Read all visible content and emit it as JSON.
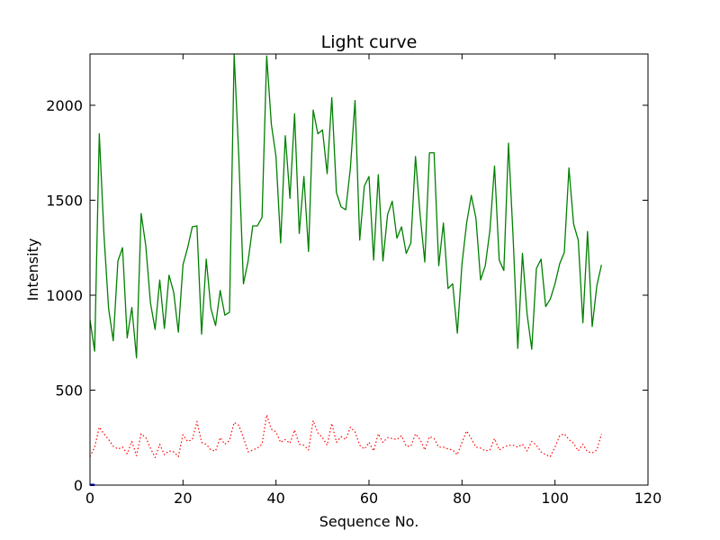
{
  "chart_data": {
    "type": "line",
    "title": "Light curve",
    "xlabel": "Sequence No.",
    "ylabel": "Intensity",
    "xlim": [
      0,
      120
    ],
    "ylim": [
      0,
      2270
    ],
    "xticks": [
      0,
      20,
      40,
      60,
      80,
      100,
      120
    ],
    "yticks": [
      0,
      500,
      1000,
      1500,
      2000
    ],
    "grid": false,
    "legend": "none",
    "series": [
      {
        "color": "#008000",
        "style": "solid",
        "x": [
          0,
          1,
          2,
          3,
          4,
          5,
          6,
          7,
          8,
          9,
          10,
          11,
          12,
          13,
          14,
          15,
          16,
          17,
          18,
          19,
          20,
          21,
          22,
          23,
          24,
          25,
          26,
          27,
          28,
          29,
          30,
          31,
          32,
          33,
          34,
          35,
          36,
          37,
          38,
          39,
          40,
          41,
          42,
          43,
          44,
          45,
          46,
          47,
          48,
          49,
          50,
          51,
          52,
          53,
          54,
          55,
          56,
          57,
          58,
          59,
          60,
          61,
          62,
          63,
          64,
          65,
          66,
          67,
          68,
          69,
          70,
          71,
          72,
          73,
          74,
          75,
          76,
          77,
          78,
          79,
          80,
          81,
          82,
          83,
          84,
          85,
          86,
          87,
          88,
          89,
          90,
          91,
          92,
          93,
          94,
          95,
          96,
          97,
          98,
          99,
          100,
          101,
          102,
          103,
          104,
          105,
          106,
          107,
          108,
          109,
          110
        ],
        "values": [
          870,
          705,
          1850,
          1320,
          930,
          760,
          1180,
          1250,
          775,
          935,
          670,
          1430,
          1260,
          960,
          820,
          1080,
          825,
          1105,
          1015,
          805,
          1160,
          1250,
          1360,
          1365,
          795,
          1190,
          930,
          840,
          1025,
          895,
          910,
          2270,
          1730,
          1060,
          1180,
          1365,
          1365,
          1410,
          2260,
          1900,
          1730,
          1275,
          1840,
          1510,
          1955,
          1325,
          1625,
          1230,
          1975,
          1850,
          1870,
          1640,
          2040,
          1540,
          1465,
          1450,
          1670,
          2025,
          1290,
          1575,
          1625,
          1185,
          1635,
          1180,
          1425,
          1495,
          1300,
          1360,
          1220,
          1275,
          1730,
          1420,
          1175,
          1750,
          1750,
          1155,
          1380,
          1035,
          1060,
          800,
          1165,
          1380,
          1525,
          1405,
          1080,
          1155,
          1340,
          1680,
          1185,
          1130,
          1800,
          1300,
          720,
          1220,
          900,
          715,
          1140,
          1190,
          940,
          980,
          1060,
          1165,
          1225,
          1670,
          1375,
          1290,
          855,
          1335,
          835,
          1050,
          1160
        ]
      },
      {
        "color": "#ff0000",
        "style": "dotted",
        "x": [
          0,
          1,
          2,
          3,
          4,
          5,
          6,
          7,
          8,
          9,
          10,
          11,
          12,
          13,
          14,
          15,
          16,
          17,
          18,
          19,
          20,
          21,
          22,
          23,
          24,
          25,
          26,
          27,
          28,
          29,
          30,
          31,
          32,
          33,
          34,
          35,
          36,
          37,
          38,
          39,
          40,
          41,
          42,
          43,
          44,
          45,
          46,
          47,
          48,
          49,
          50,
          51,
          52,
          53,
          54,
          55,
          56,
          57,
          58,
          59,
          60,
          61,
          62,
          63,
          64,
          65,
          66,
          67,
          68,
          69,
          70,
          71,
          72,
          73,
          74,
          75,
          76,
          77,
          78,
          79,
          80,
          81,
          82,
          83,
          84,
          85,
          86,
          87,
          88,
          89,
          90,
          91,
          92,
          93,
          94,
          95,
          96,
          97,
          98,
          99,
          100,
          101,
          102,
          103,
          104,
          105,
          106,
          107,
          108,
          109,
          110
        ],
        "values": [
          150,
          200,
          305,
          270,
          240,
          205,
          190,
          200,
          165,
          230,
          155,
          270,
          250,
          195,
          145,
          215,
          160,
          180,
          175,
          150,
          265,
          230,
          240,
          335,
          225,
          215,
          185,
          180,
          250,
          215,
          235,
          330,
          315,
          250,
          175,
          185,
          195,
          215,
          370,
          295,
          280,
          225,
          240,
          220,
          290,
          215,
          210,
          185,
          340,
          275,
          250,
          210,
          325,
          225,
          255,
          240,
          305,
          280,
          210,
          190,
          225,
          180,
          270,
          225,
          250,
          245,
          240,
          260,
          205,
          205,
          270,
          240,
          185,
          255,
          245,
          200,
          200,
          190,
          185,
          160,
          225,
          285,
          245,
          200,
          195,
          180,
          185,
          245,
          185,
          200,
          210,
          210,
          200,
          215,
          180,
          230,
          210,
          175,
          160,
          150,
          200,
          260,
          270,
          240,
          220,
          180,
          215,
          175,
          170,
          185,
          270
        ]
      },
      {
        "color": "#0000ff",
        "style": "solid",
        "x": [
          0,
          1
        ],
        "values": [
          0,
          0
        ]
      }
    ]
  }
}
